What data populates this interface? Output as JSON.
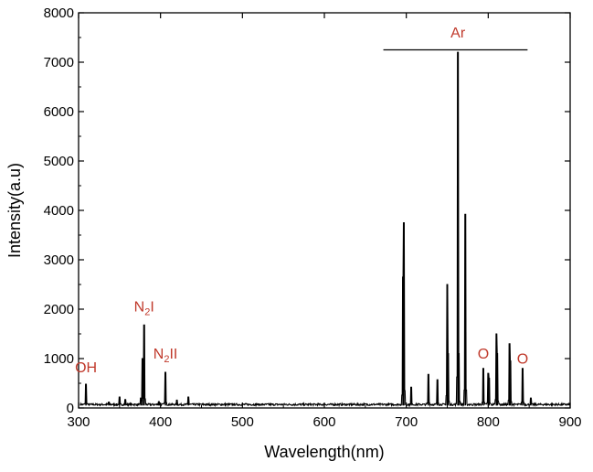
{
  "chart_data": {
    "type": "line",
    "title": "",
    "xlabel": "Wavelength(nm)",
    "ylabel": "Intensity(a.u)",
    "xlim": [
      300,
      900
    ],
    "ylim": [
      0,
      8000
    ],
    "xticks": [
      300,
      400,
      500,
      600,
      700,
      800,
      900
    ],
    "yticks": [
      0,
      1000,
      2000,
      3000,
      4000,
      5000,
      6000,
      7000,
      8000
    ],
    "grid": false,
    "baseline": 50,
    "peaks": [
      {
        "x": 309,
        "y": 480
      },
      {
        "x": 337,
        "y": 120
      },
      {
        "x": 350,
        "y": 220
      },
      {
        "x": 357,
        "y": 170
      },
      {
        "x": 376,
        "y": 200
      },
      {
        "x": 378,
        "y": 1000
      },
      {
        "x": 380,
        "y": 1680
      },
      {
        "x": 398,
        "y": 130
      },
      {
        "x": 406,
        "y": 720
      },
      {
        "x": 420,
        "y": 160
      },
      {
        "x": 434,
        "y": 220
      },
      {
        "x": 696,
        "y": 2650
      },
      {
        "x": 697,
        "y": 3750
      },
      {
        "x": 706,
        "y": 420
      },
      {
        "x": 727,
        "y": 680
      },
      {
        "x": 738,
        "y": 570
      },
      {
        "x": 750,
        "y": 2500
      },
      {
        "x": 751,
        "y": 1100
      },
      {
        "x": 763,
        "y": 7200
      },
      {
        "x": 764,
        "y": 1100
      },
      {
        "x": 772,
        "y": 3920
      },
      {
        "x": 794,
        "y": 800
      },
      {
        "x": 800,
        "y": 700
      },
      {
        "x": 801,
        "y": 600
      },
      {
        "x": 810,
        "y": 1500
      },
      {
        "x": 811,
        "y": 1100
      },
      {
        "x": 826,
        "y": 1300
      },
      {
        "x": 827,
        "y": 950
      },
      {
        "x": 842,
        "y": 800
      },
      {
        "x": 852,
        "y": 200
      }
    ],
    "annotations": [
      {
        "text": "OH",
        "x": 309,
        "y": 720
      },
      {
        "text": "N",
        "sub": "2",
        "suffix": "I",
        "x": 380,
        "y": 1950
      },
      {
        "text": "N",
        "sub": "2",
        "suffix": "II",
        "x": 406,
        "y": 1000
      },
      {
        "text": "Ar",
        "x": 763,
        "y": 7500
      },
      {
        "text": "O",
        "x": 794,
        "y": 1000
      },
      {
        "text": "O",
        "x": 842,
        "y": 900
      }
    ],
    "bracket": {
      "label": "Ar",
      "x_start": 672,
      "x_end": 848,
      "y": 7250
    }
  }
}
